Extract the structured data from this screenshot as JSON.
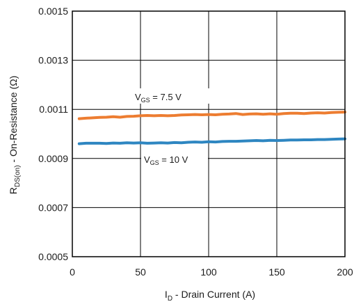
{
  "chart_data": {
    "type": "line",
    "xlim": [
      0,
      200
    ],
    "ylim": [
      0.0005,
      0.0015
    ],
    "x_ticks": [
      0,
      50,
      100,
      150,
      200
    ],
    "y_ticks": [
      0.0005,
      0.0007,
      0.0009,
      0.0011,
      0.0013,
      0.0015
    ],
    "x_tick_labels": [
      "0",
      "50",
      "100",
      "150",
      "200"
    ],
    "y_tick_labels": [
      "0.0005",
      "0.0007",
      "0.0009",
      "0.0011",
      "0.0013",
      "0.0015"
    ],
    "grid": true,
    "xlabel": {
      "main": "I",
      "sub": "D",
      "rest": " - Drain Current (A)"
    },
    "ylabel": {
      "main": "R",
      "sub": "DS(on)",
      "rest": " - On-Resistance (Ω)"
    },
    "series": [
      {
        "name": {
          "main": "V",
          "sub": "GS",
          "rest": " = 7.5 V"
        },
        "color": "#ed7d31",
        "x": [
          5,
          10,
          20,
          25,
          30,
          35,
          40,
          45,
          50,
          55,
          60,
          65,
          70,
          75,
          80,
          85,
          90,
          95,
          100,
          105,
          110,
          115,
          120,
          125,
          130,
          135,
          140,
          145,
          150,
          155,
          160,
          165,
          170,
          175,
          180,
          185,
          190,
          195,
          200
        ],
        "y": [
          0.001062,
          0.001064,
          0.001067,
          0.001068,
          0.00107,
          0.001068,
          0.001071,
          0.001072,
          0.001074,
          0.001075,
          0.001074,
          0.001075,
          0.001074,
          0.001075,
          0.001077,
          0.001078,
          0.001079,
          0.001078,
          0.001079,
          0.001078,
          0.00108,
          0.001081,
          0.001083,
          0.001079,
          0.001081,
          0.001082,
          0.00108,
          0.001082,
          0.00108,
          0.001083,
          0.001084,
          0.001084,
          0.001083,
          0.001085,
          0.001086,
          0.001085,
          0.001087,
          0.001088,
          0.001089
        ]
      },
      {
        "name": {
          "main": "V",
          "sub": "GS",
          "rest": " = 10 V"
        },
        "color": "#2e86c1",
        "x": [
          5,
          10,
          20,
          25,
          30,
          35,
          40,
          45,
          50,
          55,
          60,
          65,
          70,
          75,
          80,
          85,
          90,
          95,
          100,
          105,
          110,
          115,
          120,
          125,
          130,
          135,
          140,
          145,
          150,
          155,
          160,
          165,
          170,
          175,
          180,
          185,
          190,
          195,
          200
        ],
        "y": [
          0.00096,
          0.000962,
          0.000962,
          0.000961,
          0.000963,
          0.000962,
          0.000964,
          0.000963,
          0.000964,
          0.000962,
          0.000963,
          0.000964,
          0.000963,
          0.000965,
          0.000964,
          0.000966,
          0.000967,
          0.000966,
          0.000968,
          0.000967,
          0.000969,
          0.00097,
          0.00097,
          0.000971,
          0.000972,
          0.000973,
          0.000972,
          0.000974,
          0.000973,
          0.000974,
          0.000975,
          0.000975,
          0.000976,
          0.000976,
          0.000977,
          0.000977,
          0.000978,
          0.000979,
          0.00098
        ]
      }
    ]
  }
}
